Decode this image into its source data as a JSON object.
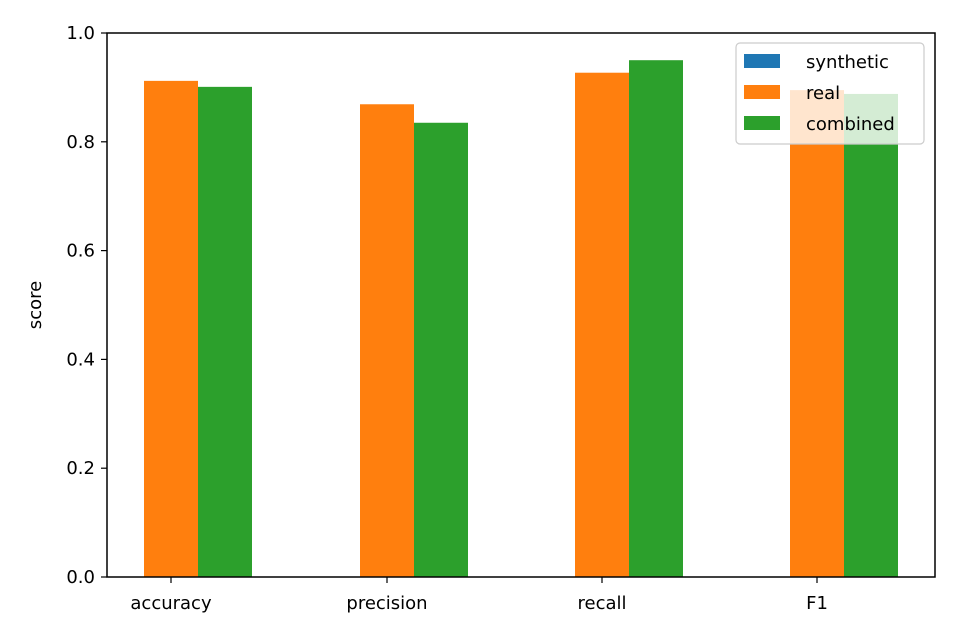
{
  "chart_data": {
    "type": "bar",
    "title": "",
    "xlabel": "",
    "ylabel": "score",
    "ylim": [
      0.0,
      1.0
    ],
    "yticks": [
      "0.0",
      "0.2",
      "0.4",
      "0.6",
      "0.8",
      "1.0"
    ],
    "ytick_values": [
      0.0,
      0.2,
      0.4,
      0.6,
      0.8,
      1.0
    ],
    "categories": [
      "accuracy",
      "precision",
      "recall",
      "F1"
    ],
    "series": [
      {
        "name": "synthetic",
        "color": "#1f77b4",
        "values": [
          0.0,
          0.0,
          0.0,
          0.0
        ]
      },
      {
        "name": "real",
        "color": "#ff7f0e",
        "values": [
          0.912,
          0.869,
          0.927,
          0.895
        ]
      },
      {
        "name": "combined",
        "color": "#2ca02c",
        "values": [
          0.901,
          0.835,
          0.95,
          0.888
        ]
      }
    ],
    "grid": false,
    "legend_position": "top-right"
  }
}
